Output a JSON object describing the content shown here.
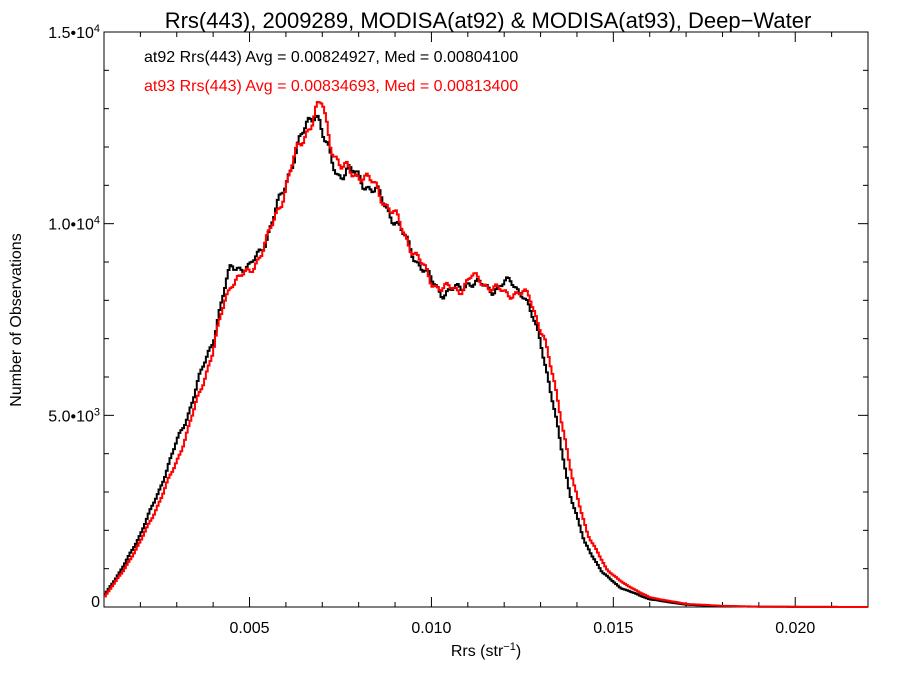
{
  "chart_data": {
    "type": "line",
    "title": "Rrs(443), 2009289, MODISA(at92) & MODISA(at93), Deep−Water",
    "xlabel_main": "Rrs (str",
    "xlabel_sup": "−1",
    "xlabel_close": ")",
    "ylabel": "Number of Observations",
    "xlim": [
      0.001,
      0.022
    ],
    "ylim": [
      0,
      15000
    ],
    "x_ticks": [
      {
        "value": 0.005,
        "label": "0.005"
      },
      {
        "value": 0.01,
        "label": "0.010"
      },
      {
        "value": 0.015,
        "label": "0.015"
      },
      {
        "value": 0.02,
        "label": "0.020"
      }
    ],
    "y_ticks": [
      {
        "value": 0,
        "base": "0",
        "exp": ""
      },
      {
        "value": 5000,
        "base": "5.0•10",
        "exp": "3"
      },
      {
        "value": 10000,
        "base": "1.0•10",
        "exp": "4"
      },
      {
        "value": 15000,
        "base": "1.5•10",
        "exp": "4"
      }
    ],
    "annotations": [
      {
        "text": "at92 Rrs(443) Avg = 0.00824927, Med = 0.00804100",
        "color": "#000000"
      },
      {
        "text": "at93 Rrs(443) Avg = 0.00834693, Med = 0.00813400",
        "color": "#ff0000"
      }
    ],
    "series": [
      {
        "color": "#000000",
        "x": [
          0.001,
          0.0015,
          0.002,
          0.0025,
          0.003,
          0.0033,
          0.0036,
          0.004,
          0.0043,
          0.0045,
          0.0047,
          0.005,
          0.0055,
          0.0058,
          0.0062,
          0.0066,
          0.0068,
          0.0069,
          0.0071,
          0.0074,
          0.0077,
          0.008,
          0.0085,
          0.009,
          0.0095,
          0.01,
          0.0103,
          0.0108,
          0.011,
          0.0113,
          0.0117,
          0.012,
          0.0122,
          0.0125,
          0.013,
          0.0134,
          0.0138,
          0.0142,
          0.0147,
          0.0152,
          0.016,
          0.017,
          0.018,
          0.019,
          0.02,
          0.021,
          0.022
        ],
        "y": [
          300,
          1000,
          1900,
          3000,
          4300,
          5000,
          5900,
          7000,
          8200,
          8900,
          8900,
          8800,
          9700,
          10500,
          11700,
          12600,
          13000,
          12800,
          12000,
          11300,
          11400,
          11200,
          10800,
          10100,
          9200,
          8500,
          8200,
          8300,
          8500,
          8400,
          8300,
          8400,
          8500,
          8200,
          7000,
          5000,
          3000,
          1700,
          900,
          500,
          200,
          60,
          20,
          8,
          4,
          2,
          0
        ]
      },
      {
        "color": "#ff0000",
        "x": [
          0.001,
          0.0015,
          0.002,
          0.0025,
          0.003,
          0.0033,
          0.0036,
          0.004,
          0.0043,
          0.0045,
          0.0047,
          0.005,
          0.0055,
          0.0058,
          0.0062,
          0.0066,
          0.0068,
          0.007,
          0.0072,
          0.0075,
          0.0078,
          0.0081,
          0.0085,
          0.009,
          0.0095,
          0.01,
          0.0103,
          0.0108,
          0.0111,
          0.0114,
          0.0117,
          0.012,
          0.0123,
          0.0127,
          0.0131,
          0.0135,
          0.0139,
          0.0143,
          0.0148,
          0.0153,
          0.016,
          0.017,
          0.018,
          0.019,
          0.02,
          0.021,
          0.022
        ],
        "y": [
          250,
          900,
          1700,
          2700,
          3800,
          4600,
          5500,
          6700,
          7900,
          8500,
          8600,
          8700,
          9600,
          10400,
          11600,
          12500,
          12900,
          13100,
          12200,
          11500,
          11300,
          11300,
          10900,
          10200,
          9300,
          8500,
          8300,
          8300,
          8600,
          8500,
          8300,
          8200,
          8200,
          8100,
          7000,
          5300,
          3200,
          1900,
          1000,
          600,
          250,
          80,
          30,
          10,
          5,
          2,
          0
        ]
      }
    ]
  }
}
